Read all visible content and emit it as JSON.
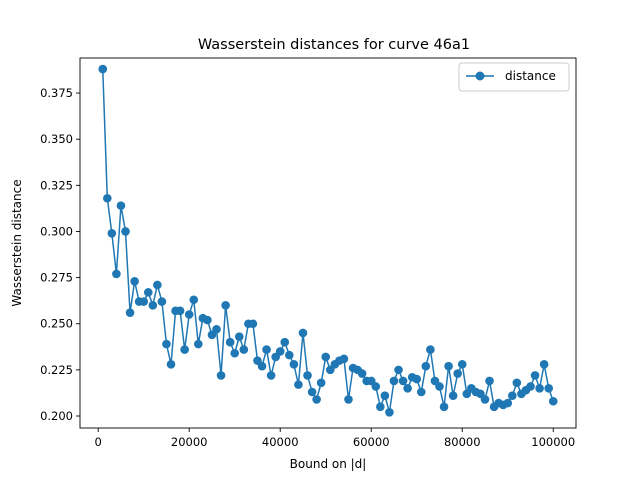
{
  "chart_data": {
    "type": "line",
    "title": "Wasserstein distances for curve 46a1",
    "xlabel": "Bound on |d|",
    "ylabel": "Wasserstein distance",
    "xlim": [
      -4000,
      105000
    ],
    "ylim": [
      0.1935,
      0.394
    ],
    "xticks": [
      0,
      20000,
      40000,
      60000,
      80000,
      100000
    ],
    "yticks": [
      0.2,
      0.225,
      0.25,
      0.275,
      0.3,
      0.325,
      0.35,
      0.375
    ],
    "ytick_labels": [
      "0.200",
      "0.225",
      "0.250",
      "0.275",
      "0.300",
      "0.325",
      "0.350",
      "0.375"
    ],
    "grid": false,
    "legend_position": "top-right",
    "series": [
      {
        "name": "distance",
        "color": "#1f77b4",
        "marker": "circle",
        "x": [
          1000,
          2000,
          3000,
          4000,
          5000,
          6000,
          7000,
          8000,
          9000,
          10000,
          11000,
          12000,
          13000,
          14000,
          15000,
          16000,
          17000,
          18000,
          19000,
          20000,
          21000,
          22000,
          23000,
          24000,
          25000,
          26000,
          27000,
          28000,
          29000,
          30000,
          31000,
          32000,
          33000,
          34000,
          35000,
          36000,
          37000,
          38000,
          39000,
          40000,
          41000,
          42000,
          43000,
          44000,
          45000,
          46000,
          47000,
          48000,
          49000,
          50000,
          51000,
          52000,
          53000,
          54000,
          55000,
          56000,
          57000,
          58000,
          59000,
          60000,
          61000,
          62000,
          63000,
          64000,
          65000,
          66000,
          67000,
          68000,
          69000,
          70000,
          71000,
          72000,
          73000,
          74000,
          75000,
          76000,
          77000,
          78000,
          79000,
          80000,
          81000,
          82000,
          83000,
          84000,
          85000,
          86000,
          87000,
          88000,
          89000,
          90000,
          91000,
          92000,
          93000,
          94000,
          95000,
          96000,
          97000,
          98000,
          99000,
          100000
        ],
        "y": [
          0.388,
          0.318,
          0.299,
          0.277,
          0.314,
          0.3,
          0.256,
          0.273,
          0.262,
          0.262,
          0.267,
          0.26,
          0.271,
          0.262,
          0.239,
          0.228,
          0.257,
          0.257,
          0.236,
          0.255,
          0.263,
          0.239,
          0.253,
          0.252,
          0.244,
          0.247,
          0.222,
          0.26,
          0.24,
          0.234,
          0.243,
          0.236,
          0.25,
          0.25,
          0.23,
          0.227,
          0.236,
          0.222,
          0.232,
          0.235,
          0.24,
          0.233,
          0.228,
          0.217,
          0.245,
          0.222,
          0.213,
          0.209,
          0.218,
          0.232,
          0.225,
          0.228,
          0.23,
          0.231,
          0.209,
          0.226,
          0.225,
          0.223,
          0.219,
          0.219,
          0.216,
          0.205,
          0.211,
          0.202,
          0.219,
          0.225,
          0.219,
          0.215,
          0.221,
          0.22,
          0.213,
          0.227,
          0.236,
          0.219,
          0.216,
          0.205,
          0.227,
          0.211,
          0.223,
          0.228,
          0.212,
          0.215,
          0.213,
          0.212,
          0.209,
          0.219,
          0.205,
          0.207,
          0.206,
          0.207,
          0.211,
          0.218,
          0.212,
          0.214,
          0.216,
          0.222,
          0.215,
          0.228,
          0.215,
          0.208
        ]
      }
    ]
  }
}
